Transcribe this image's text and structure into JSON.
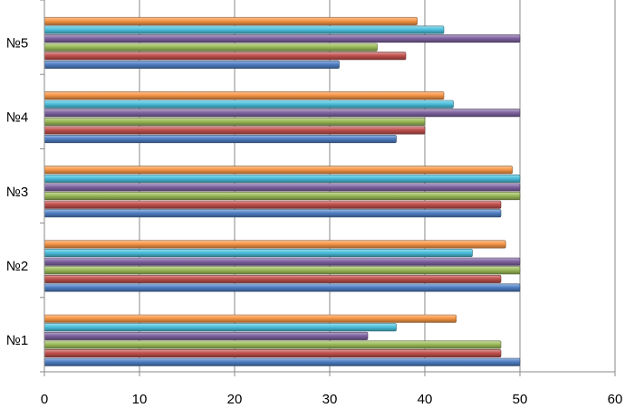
{
  "chart_data": {
    "type": "bar",
    "orientation": "horizontal",
    "categories": [
      "№1",
      "№2",
      "№3",
      "№4",
      "№5"
    ],
    "series": [
      {
        "color": "#4f7fc4",
        "values": [
          50,
          50,
          48,
          37,
          31
        ]
      },
      {
        "color": "#c0504d",
        "values": [
          48,
          48,
          48,
          40,
          38
        ]
      },
      {
        "color": "#9bbb59",
        "values": [
          48,
          50,
          50,
          40,
          35
        ]
      },
      {
        "color": "#8064a2",
        "values": [
          34,
          50,
          50,
          50,
          50
        ]
      },
      {
        "color": "#4bc0dd",
        "values": [
          37,
          45,
          50,
          43,
          42
        ]
      },
      {
        "color": "#f79646",
        "values": [
          43.3,
          48.5,
          49.2,
          42,
          39.2
        ]
      }
    ],
    "xlim": [
      0,
      60
    ],
    "xticks": [
      "0",
      "10",
      "20",
      "30",
      "40",
      "50",
      "60"
    ],
    "grid": true,
    "legend": "none",
    "title": "",
    "xlabel": "",
    "ylabel": ""
  }
}
